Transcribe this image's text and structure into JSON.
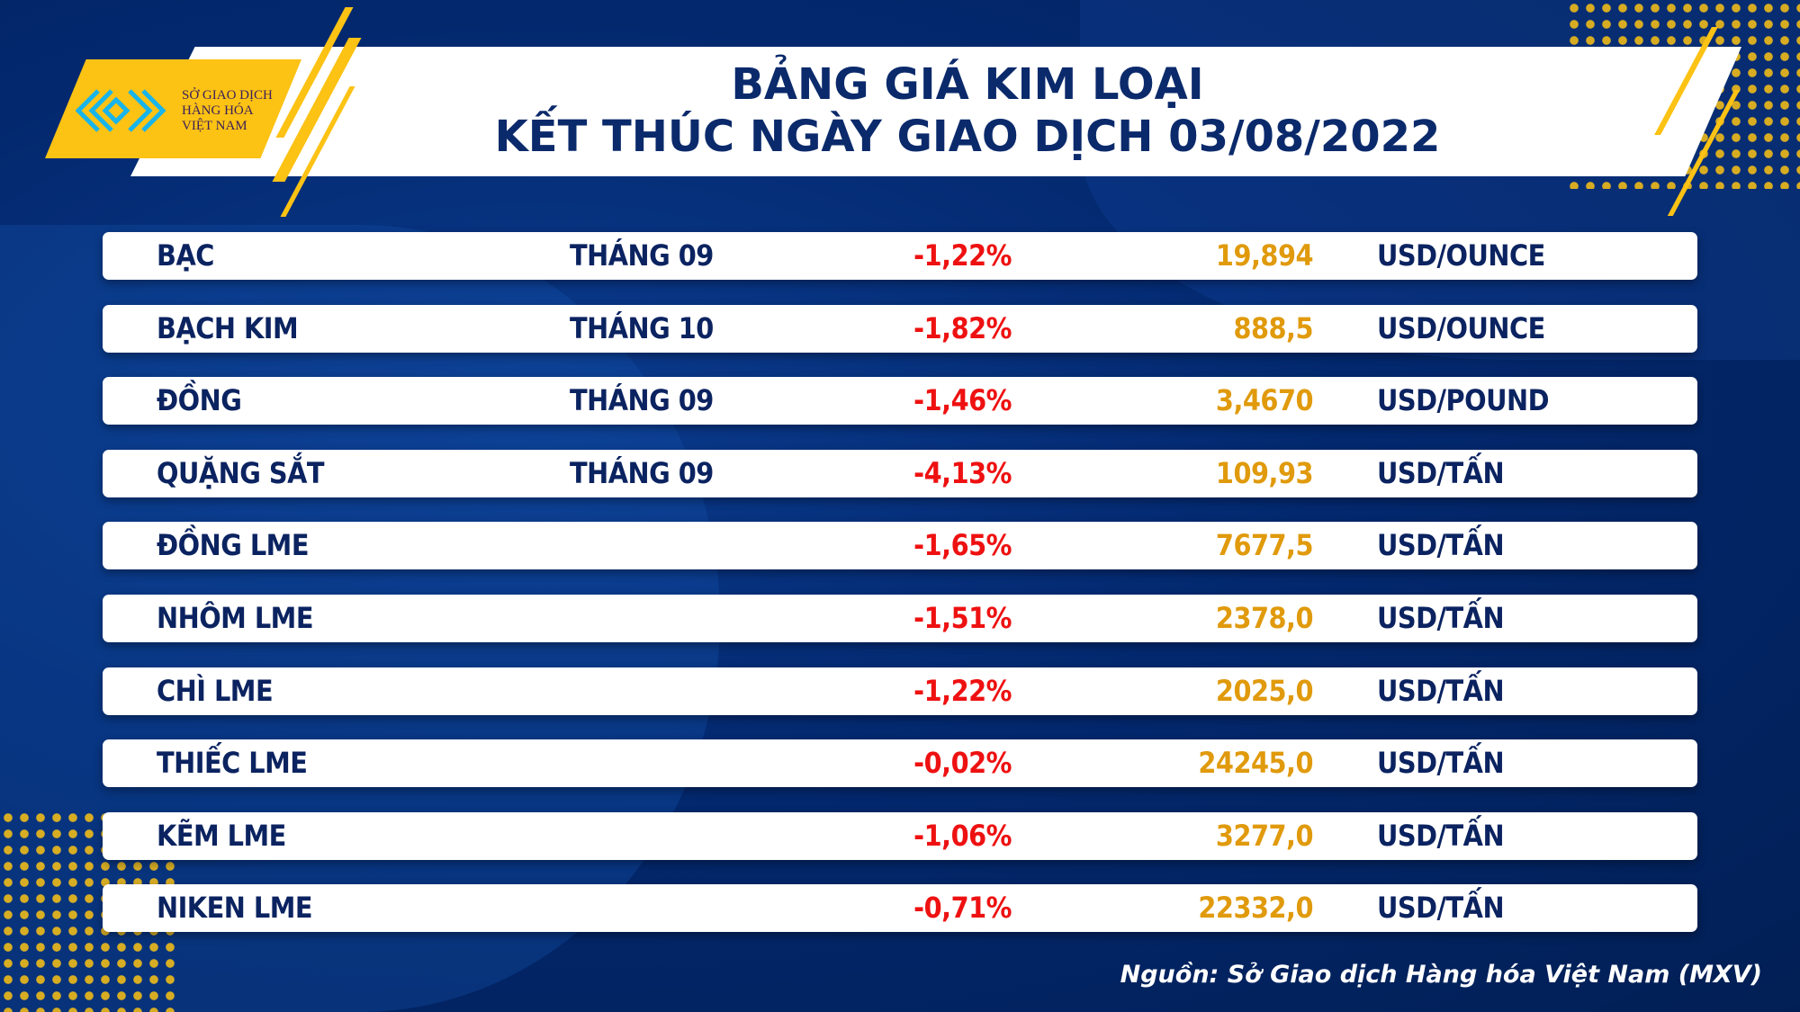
{
  "logo": {
    "line1": "SỞ GIAO DỊCH",
    "line2": "HÀNG HÓA",
    "line3": "VIỆT NAM"
  },
  "header": {
    "title_line1": "BẢNG GIÁ KIM LOẠI",
    "title_line2": "KẾT THÚC NGÀY GIAO DỊCH 03/08/2022"
  },
  "rows": [
    {
      "name": "BẠC",
      "month": "THÁNG 09",
      "change": "-1,22%",
      "price": "19,894",
      "unit": "USD/OUNCE"
    },
    {
      "name": "BẠCH KIM",
      "month": "THÁNG 10",
      "change": "-1,82%",
      "price": "888,5",
      "unit": "USD/OUNCE"
    },
    {
      "name": "ĐỒNG",
      "month": "THÁNG 09",
      "change": "-1,46%",
      "price": "3,4670",
      "unit": "USD/POUND"
    },
    {
      "name": "QUẶNG SẮT",
      "month": "THÁNG 09",
      "change": "-4,13%",
      "price": "109,93",
      "unit": "USD/TẤN"
    },
    {
      "name": "ĐỒNG LME",
      "month": "",
      "change": "-1,65%",
      "price": "7677,5",
      "unit": "USD/TẤN"
    },
    {
      "name": "NHÔM LME",
      "month": "",
      "change": "-1,51%",
      "price": "2378,0",
      "unit": "USD/TẤN"
    },
    {
      "name": "CHÌ LME",
      "month": "",
      "change": "-1,22%",
      "price": "2025,0",
      "unit": "USD/TẤN"
    },
    {
      "name": "THIẾC LME",
      "month": "",
      "change": "-0,02%",
      "price": "24245,0",
      "unit": "USD/TẤN"
    },
    {
      "name": "KẼM LME",
      "month": "",
      "change": "-1,06%",
      "price": "3277,0",
      "unit": "USD/TẤN"
    },
    {
      "name": "NIKEN LME",
      "month": "",
      "change": "-0,71%",
      "price": "22332,0",
      "unit": "USD/TẤN"
    }
  ],
  "source": "Nguồn: Sở Giao dịch Hàng hóa Việt Nam (MXV)",
  "colors": {
    "background": "#03286e",
    "accent": "#fcc214",
    "negative": "#ee1111",
    "price": "#e09a0c",
    "text": "#0b2360"
  }
}
